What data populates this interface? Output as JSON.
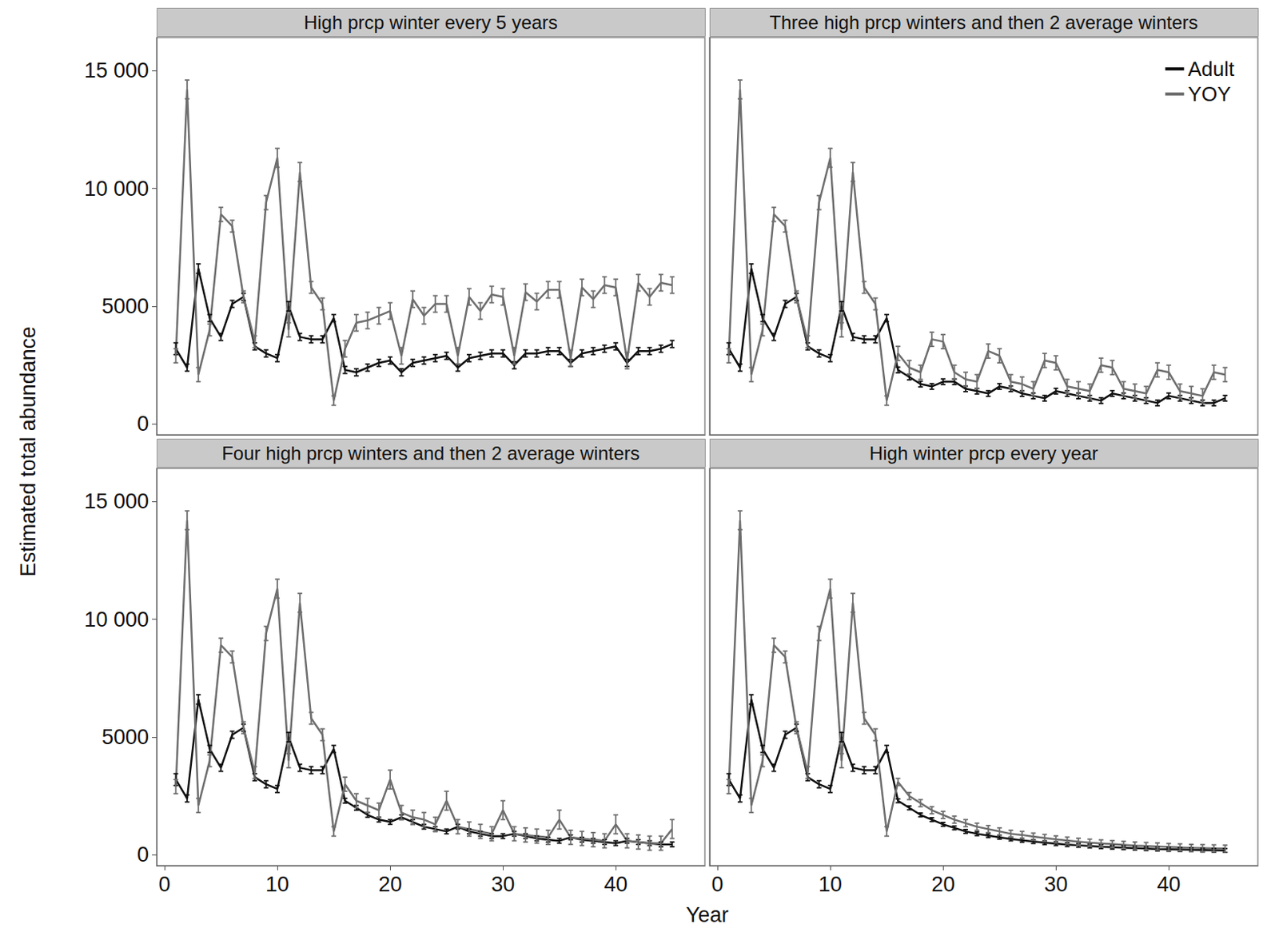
{
  "chart_data": {
    "type": "line",
    "xlabel": "Year",
    "ylabel": "Estimated total abundance",
    "x": [
      1,
      2,
      3,
      4,
      5,
      6,
      7,
      8,
      9,
      10,
      11,
      12,
      13,
      14,
      15,
      16,
      17,
      18,
      19,
      20,
      21,
      22,
      23,
      24,
      25,
      26,
      27,
      28,
      29,
      30,
      31,
      32,
      33,
      34,
      35,
      36,
      37,
      38,
      39,
      40,
      41,
      42,
      43,
      44,
      45
    ],
    "xlim": [
      -0.7,
      47.9
    ],
    "xticks": [
      0,
      10,
      20,
      30,
      40
    ],
    "ylim": [
      -450,
      16400
    ],
    "yticks": [
      0,
      5000,
      {
        "value": 10000,
        "label": "10 000"
      },
      {
        "value": 15000,
        "label": "15 000"
      }
    ],
    "grid": false,
    "panels": [
      {
        "title": "High prcp winter every 5 years",
        "tick_labels": "y",
        "series": [
          {
            "name": "Adult",
            "color": "#111111",
            "values": [
              3200,
              2400,
              6600,
              4500,
              3700,
              5100,
              5400,
              3300,
              3000,
              2800,
              5000,
              3700,
              3600,
              3600,
              4500,
              2300,
              2200,
              2400,
              2600,
              2700,
              2200,
              2600,
              2700,
              2800,
              2900,
              2400,
              2800,
              2900,
              3000,
              3000,
              2500,
              3000,
              3000,
              3100,
              3100,
              2600,
              3000,
              3100,
              3200,
              3300,
              2600,
              3100,
              3100,
              3200,
              3400
            ],
            "errors": [
              250,
              150,
              200,
              150,
              150,
              150,
              150,
              150,
              150,
              150,
              200,
              150,
              150,
              150,
              150,
              150,
              150,
              150,
              150,
              150,
              150,
              150,
              150,
              150,
              150,
              150,
              150,
              150,
              150,
              150,
              150,
              150,
              150,
              150,
              150,
              150,
              150,
              150,
              150,
              150,
              150,
              150,
              150,
              150,
              150
            ]
          },
          {
            "name": "YOY",
            "color": "#6e6e6e",
            "values": [
              2900,
              14200,
              2100,
              4000,
              8900,
              8400,
              5400,
              3500,
              9400,
              11300,
              4000,
              10700,
              5800,
              5100,
              1000,
              3200,
              4300,
              4400,
              4600,
              4800,
              2900,
              5300,
              4600,
              5100,
              5100,
              2900,
              5400,
              4800,
              5500,
              5400,
              2900,
              5600,
              5200,
              5700,
              5700,
              2800,
              5800,
              5300,
              5900,
              5800,
              2700,
              6000,
              5400,
              6000,
              5900
            ],
            "errors": [
              300,
              400,
              300,
              250,
              300,
              250,
              250,
              250,
              300,
              400,
              300,
              400,
              250,
              250,
              200,
              350,
              350,
              350,
              350,
              350,
              350,
              350,
              350,
              350,
              350,
              350,
              350,
              350,
              350,
              350,
              350,
              350,
              350,
              350,
              350,
              350,
              350,
              350,
              350,
              350,
              350,
              350,
              350,
              350,
              350
            ]
          }
        ]
      },
      {
        "title": "Three high prcp winters and then 2 average winters",
        "tick_labels": false,
        "legend": "upper right",
        "series": [
          {
            "name": "Adult",
            "color": "#111111",
            "values": [
              3200,
              2400,
              6600,
              4500,
              3700,
              5100,
              5400,
              3300,
              3000,
              2800,
              5000,
              3700,
              3600,
              3600,
              4500,
              2300,
              2000,
              1700,
              1600,
              1800,
              1800,
              1500,
              1400,
              1300,
              1600,
              1500,
              1300,
              1200,
              1100,
              1400,
              1300,
              1200,
              1100,
              1000,
              1300,
              1200,
              1100,
              1000,
              900,
              1200,
              1100,
              1000,
              900,
              900,
              1100
            ],
            "errors": [
              250,
              150,
              200,
              150,
              150,
              150,
              150,
              150,
              150,
              150,
              200,
              150,
              150,
              150,
              150,
              120,
              120,
              120,
              120,
              120,
              120,
              120,
              120,
              120,
              120,
              120,
              120,
              120,
              120,
              120,
              120,
              120,
              120,
              120,
              120,
              120,
              120,
              120,
              120,
              120,
              120,
              120,
              120,
              120,
              120
            ]
          },
          {
            "name": "YOY",
            "color": "#6e6e6e",
            "values": [
              2900,
              14200,
              2100,
              4000,
              8900,
              8400,
              5400,
              3500,
              9400,
              11300,
              4000,
              10700,
              5800,
              5100,
              1000,
              3000,
              2400,
              2200,
              3600,
              3500,
              2200,
              1900,
              1800,
              3100,
              2900,
              1800,
              1700,
              1500,
              2700,
              2600,
              1600,
              1500,
              1400,
              2500,
              2400,
              1500,
              1400,
              1300,
              2300,
              2200,
              1400,
              1300,
              1200,
              2200,
              2100
            ],
            "errors": [
              300,
              400,
              300,
              250,
              300,
              250,
              250,
              250,
              300,
              400,
              300,
              400,
              250,
              250,
              200,
              300,
              300,
              300,
              300,
              300,
              300,
              300,
              300,
              300,
              300,
              300,
              300,
              300,
              300,
              300,
              300,
              300,
              300,
              300,
              300,
              300,
              300,
              300,
              300,
              300,
              300,
              300,
              300,
              300,
              300
            ]
          }
        ]
      },
      {
        "title": "Four high prcp winters and then 2 average winters",
        "tick_labels": true,
        "series": [
          {
            "name": "Adult",
            "color": "#111111",
            "values": [
              3200,
              2400,
              6600,
              4500,
              3700,
              5100,
              5400,
              3300,
              3000,
              2800,
              5000,
              3700,
              3600,
              3600,
              4500,
              2300,
              2000,
              1700,
              1500,
              1400,
              1600,
              1400,
              1200,
              1100,
              1000,
              1200,
              1000,
              900,
              800,
              800,
              900,
              800,
              700,
              650,
              600,
              750,
              650,
              600,
              550,
              500,
              600,
              550,
              500,
              450,
              450
            ],
            "errors": [
              250,
              150,
              200,
              150,
              150,
              150,
              150,
              150,
              150,
              150,
              200,
              150,
              150,
              150,
              150,
              100,
              100,
              100,
              100,
              100,
              100,
              100,
              100,
              100,
              100,
              100,
              100,
              100,
              100,
              100,
              100,
              100,
              100,
              100,
              100,
              100,
              100,
              100,
              100,
              100,
              100,
              100,
              100,
              100,
              100
            ]
          },
          {
            "name": "YOY",
            "color": "#6e6e6e",
            "values": [
              2900,
              14200,
              2100,
              4000,
              8900,
              8400,
              5400,
              3500,
              9400,
              11300,
              4000,
              10700,
              5800,
              5100,
              1000,
              3000,
              2300,
              2100,
              1900,
              3200,
              1800,
              1600,
              1500,
              1300,
              2300,
              1200,
              1100,
              1000,
              900,
              1900,
              900,
              850,
              800,
              750,
              1500,
              750,
              700,
              650,
              600,
              1300,
              600,
              550,
              500,
              500,
              1100
            ],
            "errors": [
              300,
              400,
              300,
              250,
              300,
              250,
              250,
              250,
              300,
              400,
              300,
              400,
              250,
              250,
              200,
              300,
              300,
              300,
              300,
              400,
              300,
              300,
              300,
              300,
              400,
              300,
              300,
              300,
              300,
              400,
              300,
              300,
              300,
              300,
              400,
              300,
              300,
              300,
              300,
              400,
              300,
              300,
              300,
              300,
              400
            ]
          }
        ]
      },
      {
        "title": "High winter prcp every year",
        "tick_labels": "x",
        "series": [
          {
            "name": "Adult",
            "color": "#111111",
            "values": [
              3200,
              2400,
              6600,
              4500,
              3700,
              5100,
              5400,
              3300,
              3000,
              2800,
              5000,
              3700,
              3600,
              3600,
              4500,
              2300,
              2000,
              1700,
              1500,
              1300,
              1150,
              1000,
              900,
              820,
              750,
              680,
              620,
              570,
              520,
              480,
              440,
              410,
              380,
              350,
              330,
              310,
              290,
              270,
              250,
              240,
              230,
              220,
              210,
              200,
              190
            ],
            "errors": [
              250,
              150,
              200,
              150,
              150,
              150,
              150,
              150,
              150,
              150,
              200,
              150,
              150,
              150,
              150,
              80,
              80,
              80,
              80,
              80,
              80,
              80,
              80,
              80,
              80,
              80,
              80,
              80,
              80,
              80,
              80,
              80,
              80,
              80,
              80,
              80,
              80,
              80,
              80,
              80,
              80,
              80,
              80,
              80,
              80
            ]
          },
          {
            "name": "YOY",
            "color": "#6e6e6e",
            "values": [
              2900,
              14200,
              2100,
              4000,
              8900,
              8400,
              5400,
              3500,
              9400,
              11300,
              4000,
              10700,
              5800,
              5100,
              1000,
              3100,
              2500,
              2200,
              1900,
              1700,
              1500,
              1350,
              1200,
              1100,
              1000,
              900,
              850,
              780,
              720,
              660,
              610,
              560,
              520,
              490,
              460,
              430,
              400,
              380,
              360,
              340,
              320,
              300,
              290,
              280,
              270
            ],
            "errors": [
              300,
              400,
              300,
              250,
              300,
              250,
              250,
              250,
              300,
              400,
              300,
              400,
              250,
              250,
              200,
              150,
              150,
              150,
              150,
              150,
              150,
              150,
              150,
              150,
              150,
              150,
              150,
              150,
              150,
              150,
              150,
              150,
              150,
              150,
              150,
              150,
              150,
              150,
              150,
              150,
              150,
              150,
              150,
              150,
              150
            ]
          }
        ]
      }
    ]
  }
}
